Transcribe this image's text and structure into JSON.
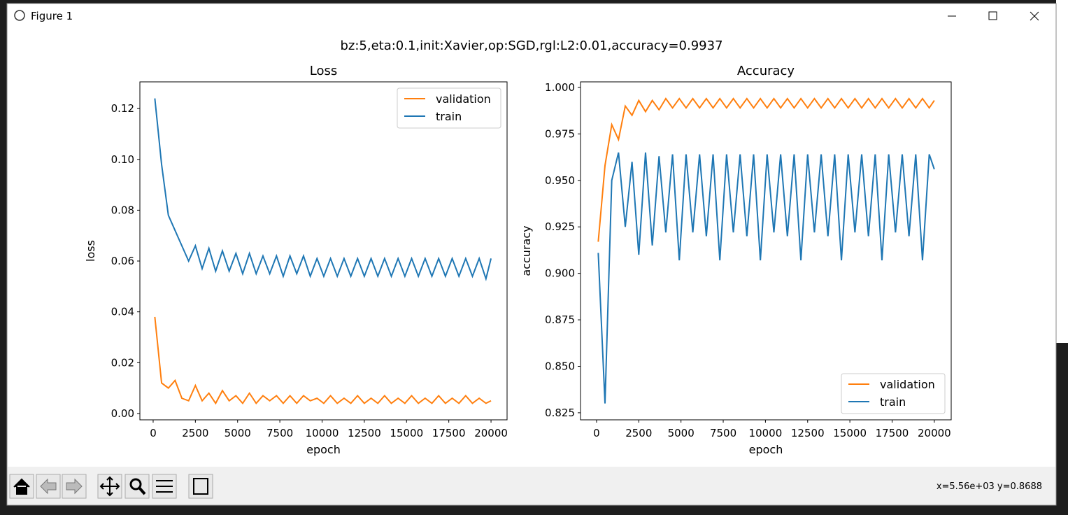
{
  "window": {
    "title": "Figure 1"
  },
  "figure": {
    "suptitle": "bz:5,eta:0.1,init:Xavier,op:SGD,rgl:L2:0.01,accuracy=0.9937"
  },
  "status": "x=5.56e+03 y=0.8688",
  "chart_data": [
    {
      "type": "line",
      "title": "Loss",
      "xlabel": "epoch",
      "ylabel": "loss",
      "legend": "upper right",
      "x": [
        100,
        500,
        900,
        1300,
        1700,
        2100,
        2500,
        2900,
        3300,
        3700,
        4100,
        4500,
        4900,
        5300,
        5700,
        6100,
        6500,
        6900,
        7300,
        7700,
        8100,
        8500,
        8900,
        9300,
        9700,
        10100,
        10500,
        10900,
        11300,
        11700,
        12100,
        12500,
        12900,
        13300,
        13700,
        14100,
        14500,
        14900,
        15300,
        15700,
        16100,
        16500,
        16900,
        17300,
        17700,
        18100,
        18500,
        18900,
        19300,
        19700,
        20000
      ],
      "xlim": [
        -785,
        20950
      ],
      "xticks": [
        0,
        2500,
        5000,
        7500,
        10000,
        12500,
        15000,
        17500,
        20000
      ],
      "ylim": [
        -0.0025,
        0.1305
      ],
      "yticks": [
        {
          "value": 0,
          "label": "0.00"
        },
        0.02,
        0.04,
        0.06,
        0.08,
        {
          "value": 0.1,
          "label": "0.10"
        },
        0.12
      ],
      "series": [
        {
          "name": "validation",
          "color": "#ff7f0e",
          "values": [
            0.038,
            0.012,
            0.01,
            0.013,
            0.006,
            0.005,
            0.011,
            0.005,
            0.008,
            0.004,
            0.009,
            0.005,
            0.007,
            0.004,
            0.008,
            0.004,
            0.007,
            0.005,
            0.007,
            0.004,
            0.007,
            0.004,
            0.007,
            0.005,
            0.006,
            0.004,
            0.007,
            0.004,
            0.006,
            0.004,
            0.007,
            0.004,
            0.006,
            0.004,
            0.007,
            0.004,
            0.006,
            0.004,
            0.007,
            0.004,
            0.006,
            0.004,
            0.007,
            0.004,
            0.006,
            0.004,
            0.007,
            0.004,
            0.006,
            0.004,
            0.005
          ]
        },
        {
          "name": "train",
          "color": "#1f77b4",
          "values": [
            0.124,
            0.098,
            0.078,
            0.072,
            0.066,
            0.06,
            0.066,
            0.057,
            0.065,
            0.056,
            0.064,
            0.056,
            0.063,
            0.055,
            0.063,
            0.055,
            0.062,
            0.055,
            0.062,
            0.054,
            0.062,
            0.055,
            0.062,
            0.054,
            0.061,
            0.054,
            0.061,
            0.054,
            0.061,
            0.054,
            0.061,
            0.054,
            0.061,
            0.054,
            0.061,
            0.054,
            0.061,
            0.054,
            0.061,
            0.054,
            0.061,
            0.054,
            0.061,
            0.054,
            0.061,
            0.054,
            0.061,
            0.054,
            0.061,
            0.053,
            0.061
          ]
        }
      ]
    },
    {
      "type": "line",
      "title": "Accuracy",
      "xlabel": "epoch",
      "ylabel": "accuracy",
      "legend": "lower right",
      "x": [
        100,
        500,
        900,
        1300,
        1700,
        2100,
        2500,
        2900,
        3300,
        3700,
        4100,
        4500,
        4900,
        5300,
        5700,
        6100,
        6500,
        6900,
        7300,
        7700,
        8100,
        8500,
        8900,
        9300,
        9700,
        10100,
        10500,
        10900,
        11300,
        11700,
        12100,
        12500,
        12900,
        13300,
        13700,
        14100,
        14500,
        14900,
        15300,
        15700,
        16100,
        16500,
        16900,
        17300,
        17700,
        18100,
        18500,
        18900,
        19300,
        19700,
        20000
      ],
      "xlim": [
        -950,
        21000
      ],
      "xticks": [
        0,
        2500,
        5000,
        7500,
        10000,
        12500,
        15000,
        17500,
        20000
      ],
      "ylim": [
        0.8212,
        1.003
      ],
      "yticks": [
        0.825,
        {
          "value": 0.85,
          "label": "0.850"
        },
        0.875,
        {
          "value": 0.9,
          "label": "0.900"
        },
        0.925,
        {
          "value": 0.95,
          "label": "0.950"
        },
        0.975,
        {
          "value": 1,
          "label": "1.000"
        }
      ],
      "series": [
        {
          "name": "validation",
          "color": "#ff7f0e",
          "values": [
            0.917,
            0.958,
            0.98,
            0.972,
            0.99,
            0.985,
            0.993,
            0.987,
            0.993,
            0.988,
            0.994,
            0.989,
            0.994,
            0.989,
            0.994,
            0.989,
            0.994,
            0.989,
            0.994,
            0.989,
            0.994,
            0.989,
            0.994,
            0.989,
            0.994,
            0.989,
            0.994,
            0.989,
            0.994,
            0.989,
            0.994,
            0.989,
            0.994,
            0.989,
            0.994,
            0.989,
            0.994,
            0.989,
            0.994,
            0.989,
            0.994,
            0.989,
            0.994,
            0.989,
            0.994,
            0.989,
            0.994,
            0.989,
            0.994,
            0.989,
            0.993
          ]
        },
        {
          "name": "train",
          "color": "#1f77b4",
          "values": [
            0.911,
            0.83,
            0.95,
            0.965,
            0.925,
            0.96,
            0.91,
            0.965,
            0.915,
            0.963,
            0.922,
            0.964,
            0.907,
            0.964,
            0.922,
            0.964,
            0.92,
            0.964,
            0.907,
            0.964,
            0.922,
            0.964,
            0.92,
            0.964,
            0.907,
            0.964,
            0.922,
            0.964,
            0.92,
            0.964,
            0.907,
            0.964,
            0.922,
            0.964,
            0.92,
            0.964,
            0.907,
            0.964,
            0.922,
            0.964,
            0.92,
            0.964,
            0.907,
            0.964,
            0.922,
            0.964,
            0.92,
            0.964,
            0.907,
            0.964,
            0.956
          ]
        }
      ]
    }
  ]
}
